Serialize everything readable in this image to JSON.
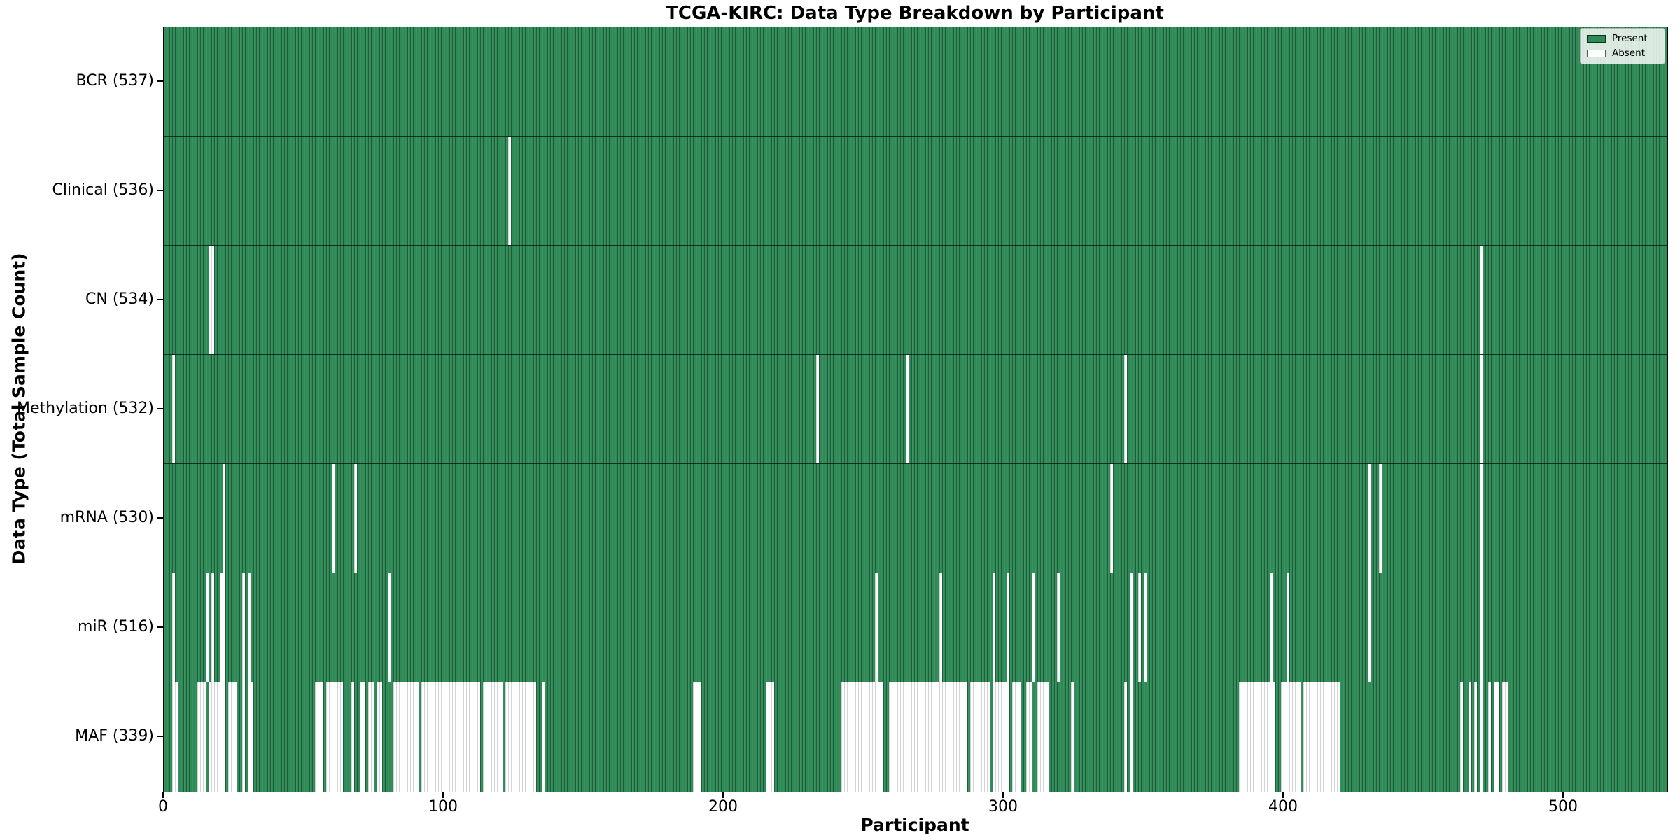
{
  "title": "TCGA-KIRC: Data Type Breakdown by Participant",
  "xlabel": "Participant",
  "ylabel": "Data Type (Total Sample Count)",
  "legend": {
    "present_label": "Present",
    "absent_label": "Absent"
  },
  "colors": {
    "present": "#2e8b57",
    "absent": "#ffffff"
  },
  "chart_data": {
    "type": "heatmap",
    "title": "TCGA-KIRC: Data Type Breakdown by Participant",
    "xlabel": "Participant",
    "ylabel": "Data Type (Total Sample Count)",
    "legend": [
      "Present",
      "Absent"
    ],
    "legend_position": "upper right",
    "n_participants": 537,
    "xlim": [
      0,
      537
    ],
    "x_ticks": [
      0,
      100,
      200,
      300,
      400,
      500
    ],
    "rows": [
      {
        "label": "BCR (537)",
        "name": "BCR",
        "present_count": 537,
        "absent_ranges": []
      },
      {
        "label": "Clinical (536)",
        "name": "Clinical",
        "present_count": 536,
        "absent_ranges": [
          [
            123,
            123
          ]
        ]
      },
      {
        "label": "CN (534)",
        "name": "CN",
        "present_count": 534,
        "absent_ranges": [
          [
            16,
            17
          ],
          [
            470,
            470
          ]
        ]
      },
      {
        "label": "Methylation (532)",
        "name": "Methylation",
        "present_count": 532,
        "absent_ranges": [
          [
            3,
            3
          ],
          [
            233,
            233
          ],
          [
            265,
            265
          ],
          [
            343,
            343
          ],
          [
            470,
            470
          ]
        ]
      },
      {
        "label": "mRNA (530)",
        "name": "mRNA",
        "present_count": 530,
        "absent_ranges": [
          [
            21,
            21
          ],
          [
            60,
            60
          ],
          [
            68,
            68
          ],
          [
            338,
            338
          ],
          [
            430,
            430
          ],
          [
            434,
            434
          ],
          [
            470,
            470
          ]
        ]
      },
      {
        "label": "miR (516)",
        "name": "miR",
        "present_count": 516,
        "absent_ranges": [
          [
            3,
            3
          ],
          [
            15,
            15
          ],
          [
            17,
            17
          ],
          [
            20,
            21
          ],
          [
            28,
            28
          ],
          [
            30,
            30
          ],
          [
            80,
            80
          ],
          [
            254,
            254
          ],
          [
            277,
            277
          ],
          [
            296,
            296
          ],
          [
            301,
            301
          ],
          [
            310,
            310
          ],
          [
            319,
            319
          ],
          [
            345,
            345
          ],
          [
            348,
            348
          ],
          [
            350,
            350
          ],
          [
            395,
            395
          ],
          [
            401,
            401
          ],
          [
            430,
            430
          ],
          [
            470,
            470
          ]
        ]
      },
      {
        "label": "MAF (339)",
        "name": "MAF",
        "present_count": 339,
        "absent_ranges": [
          [
            3,
            4
          ],
          [
            12,
            14
          ],
          [
            16,
            21
          ],
          [
            23,
            25
          ],
          [
            28,
            28
          ],
          [
            30,
            31
          ],
          [
            54,
            56
          ],
          [
            58,
            63
          ],
          [
            67,
            67
          ],
          [
            70,
            71
          ],
          [
            73,
            74
          ],
          [
            76,
            77
          ],
          [
            82,
            90
          ],
          [
            92,
            112
          ],
          [
            114,
            120
          ],
          [
            122,
            132
          ],
          [
            135,
            135
          ],
          [
            189,
            191
          ],
          [
            215,
            217
          ],
          [
            242,
            256
          ],
          [
            259,
            286
          ],
          [
            288,
            294
          ],
          [
            296,
            301
          ],
          [
            303,
            305
          ],
          [
            308,
            309
          ],
          [
            312,
            315
          ],
          [
            324,
            324
          ],
          [
            343,
            343
          ],
          [
            345,
            345
          ],
          [
            384,
            396
          ],
          [
            399,
            405
          ],
          [
            407,
            419
          ],
          [
            463,
            463
          ],
          [
            466,
            466
          ],
          [
            468,
            468
          ],
          [
            470,
            470
          ],
          [
            473,
            473
          ],
          [
            475,
            476
          ],
          [
            478,
            479
          ]
        ]
      }
    ]
  }
}
